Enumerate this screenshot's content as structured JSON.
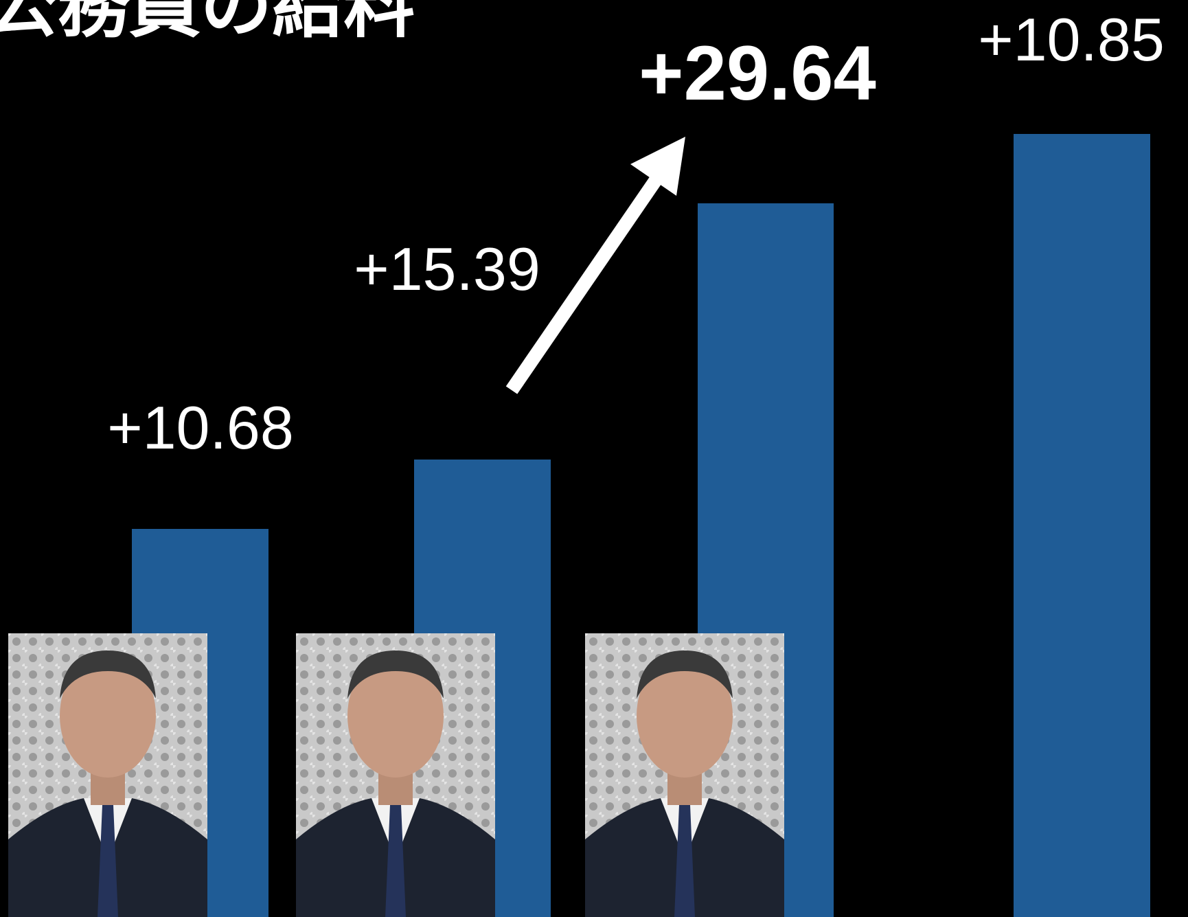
{
  "slide": {
    "title": "公務員の給料",
    "labels": [
      "+10.68",
      "+15.39",
      "+29.64",
      "+10.85"
    ]
  }
}
